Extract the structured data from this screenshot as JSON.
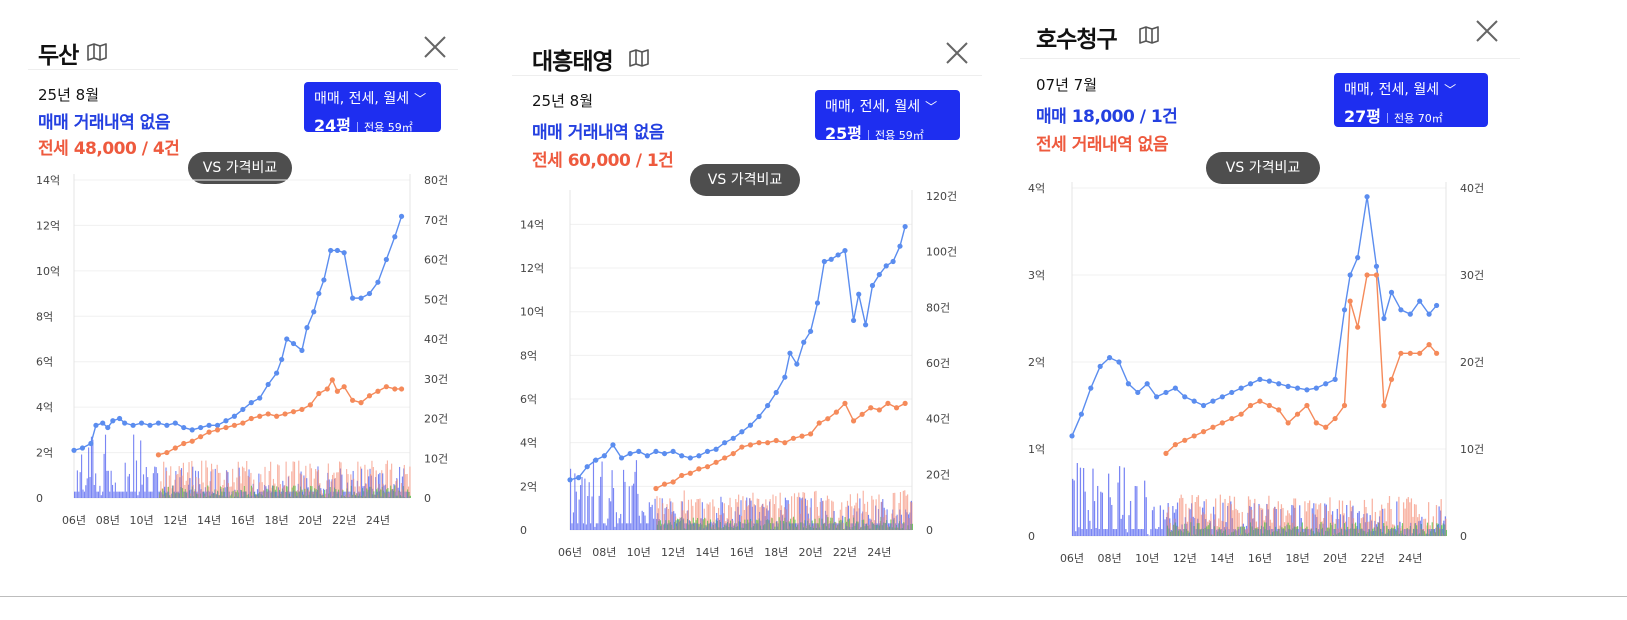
{
  "cards": [
    {
      "title": "두산",
      "icon": "map-icon",
      "period": "25년 8월",
      "sale": "매매 거래내역 없음",
      "jeonse": "전세 48,000 / 4건",
      "type_label": "매매, 전세, 월세",
      "pyeong": "24평",
      "area": "전용 59㎡",
      "vs_label": "VS 가격비교"
    },
    {
      "title": "대흥태영",
      "icon": "map-icon",
      "period": "25년 8월",
      "sale": "매매 거래내역 없음",
      "jeonse": "전세 60,000 / 1건",
      "type_label": "매매, 전세, 월세",
      "pyeong": "25평",
      "area": "전용 59㎡",
      "vs_label": "VS 가격비교"
    },
    {
      "title": "호수청구",
      "icon": "map-icon",
      "period": "07년 7월",
      "sale": "매매 18,000 / 1건",
      "jeonse": "전세 거래내역 없음",
      "type_label": "매매, 전세, 월세",
      "pyeong": "27평",
      "area": "전용 70㎡",
      "vs_label": "VS 가격비교"
    }
  ],
  "colors": {
    "sale": "#5b8def",
    "jeonse": "#f58a5a",
    "sale_bar": "#4d5ef0",
    "jeonse_bar": "#f5917a",
    "monthly_bar": "#55c04a",
    "button": "#1e2ef0",
    "vs_button": "#4e4e4e"
  },
  "chart_data": [
    {
      "type": "line",
      "x_ticks": [
        "06년",
        "08년",
        "10년",
        "12년",
        "14년",
        "16년",
        "18년",
        "20년",
        "22년",
        "24년"
      ],
      "y_left_ticks": [
        "0",
        "2억",
        "4억",
        "6억",
        "8억",
        "10억",
        "12억",
        "14억"
      ],
      "y_right_ticks": [
        "0",
        "10건",
        "20건",
        "30건",
        "40건",
        "50건",
        "60건",
        "70건",
        "80건"
      ],
      "ylim_left": [
        0,
        14
      ],
      "ylim_right": [
        0,
        80
      ],
      "x_range": [
        2006,
        2025.9
      ],
      "series": [
        {
          "kind": "sale",
          "points": [
            [
              2006.0,
              2.1
            ],
            [
              2006.5,
              2.2
            ],
            [
              2007.0,
              2.4
            ],
            [
              2007.3,
              3.2
            ],
            [
              2007.7,
              3.3
            ],
            [
              2008.0,
              3.1
            ],
            [
              2008.3,
              3.4
            ],
            [
              2008.7,
              3.5
            ],
            [
              2009.0,
              3.3
            ],
            [
              2009.5,
              3.2
            ],
            [
              2010.0,
              3.3
            ],
            [
              2010.5,
              3.2
            ],
            [
              2011.0,
              3.3
            ],
            [
              2011.5,
              3.2
            ],
            [
              2012.0,
              3.3
            ],
            [
              2012.5,
              3.1
            ],
            [
              2013.0,
              3.0
            ],
            [
              2013.5,
              3.1
            ],
            [
              2014.0,
              3.2
            ],
            [
              2014.5,
              3.2
            ],
            [
              2015.0,
              3.4
            ],
            [
              2015.5,
              3.6
            ],
            [
              2016.0,
              3.9
            ],
            [
              2016.5,
              4.2
            ],
            [
              2017.0,
              4.4
            ],
            [
              2017.5,
              5.0
            ],
            [
              2018.0,
              5.5
            ],
            [
              2018.3,
              6.1
            ],
            [
              2018.6,
              7.0
            ],
            [
              2019.0,
              6.8
            ],
            [
              2019.5,
              6.5
            ],
            [
              2019.8,
              7.5
            ],
            [
              2020.2,
              8.2
            ],
            [
              2020.5,
              9.0
            ],
            [
              2020.8,
              9.6
            ],
            [
              2021.2,
              10.9
            ],
            [
              2021.6,
              10.9
            ],
            [
              2022.0,
              10.8
            ],
            [
              2022.5,
              8.8
            ],
            [
              2023.0,
              8.8
            ],
            [
              2023.5,
              9.0
            ],
            [
              2024.0,
              9.5
            ],
            [
              2024.5,
              10.5
            ],
            [
              2025.0,
              11.5
            ],
            [
              2025.4,
              12.4
            ]
          ]
        },
        {
          "kind": "jeonse",
          "points": [
            [
              2011.0,
              1.9
            ],
            [
              2011.5,
              2.0
            ],
            [
              2012.0,
              2.2
            ],
            [
              2012.5,
              2.4
            ],
            [
              2013.0,
              2.5
            ],
            [
              2013.5,
              2.7
            ],
            [
              2014.0,
              2.9
            ],
            [
              2014.5,
              3.0
            ],
            [
              2015.0,
              3.1
            ],
            [
              2015.5,
              3.2
            ],
            [
              2016.0,
              3.3
            ],
            [
              2016.5,
              3.5
            ],
            [
              2017.0,
              3.6
            ],
            [
              2017.5,
              3.7
            ],
            [
              2018.0,
              3.6
            ],
            [
              2018.5,
              3.7
            ],
            [
              2019.0,
              3.8
            ],
            [
              2019.5,
              3.9
            ],
            [
              2020.0,
              4.1
            ],
            [
              2020.5,
              4.6
            ],
            [
              2021.0,
              4.8
            ],
            [
              2021.3,
              5.2
            ],
            [
              2021.6,
              4.7
            ],
            [
              2022.0,
              4.9
            ],
            [
              2022.5,
              4.3
            ],
            [
              2023.0,
              4.2
            ],
            [
              2023.5,
              4.5
            ],
            [
              2024.0,
              4.7
            ],
            [
              2024.5,
              4.9
            ],
            [
              2025.0,
              4.8
            ],
            [
              2025.4,
              4.8
            ]
          ]
        }
      ]
    },
    {
      "type": "line",
      "x_ticks": [
        "06년",
        "08년",
        "10년",
        "12년",
        "14년",
        "16년",
        "18년",
        "20년",
        "22년",
        "24년"
      ],
      "y_left_ticks": [
        "0",
        "2억",
        "4억",
        "6억",
        "8억",
        "10억",
        "12억",
        "14억"
      ],
      "y_right_ticks": [
        "0",
        "20건",
        "40건",
        "60건",
        "80건",
        "100건",
        "120건"
      ],
      "ylim_left": [
        0,
        15.3
      ],
      "ylim_right": [
        0,
        120
      ],
      "x_range": [
        2006,
        2025.9
      ],
      "series": [
        {
          "kind": "sale",
          "points": [
            [
              2006.0,
              2.3
            ],
            [
              2006.5,
              2.4
            ],
            [
              2007.0,
              2.9
            ],
            [
              2007.5,
              3.2
            ],
            [
              2008.0,
              3.4
            ],
            [
              2008.5,
              3.9
            ],
            [
              2009.0,
              3.3
            ],
            [
              2009.5,
              3.5
            ],
            [
              2010.0,
              3.6
            ],
            [
              2010.5,
              3.4
            ],
            [
              2011.0,
              3.6
            ],
            [
              2011.5,
              3.5
            ],
            [
              2012.0,
              3.6
            ],
            [
              2012.5,
              3.4
            ],
            [
              2013.0,
              3.3
            ],
            [
              2013.5,
              3.4
            ],
            [
              2014.0,
              3.6
            ],
            [
              2014.5,
              3.7
            ],
            [
              2015.0,
              4.0
            ],
            [
              2015.5,
              4.2
            ],
            [
              2016.0,
              4.5
            ],
            [
              2016.5,
              4.8
            ],
            [
              2017.0,
              5.2
            ],
            [
              2017.5,
              5.7
            ],
            [
              2018.0,
              6.3
            ],
            [
              2018.5,
              7.0
            ],
            [
              2018.8,
              8.1
            ],
            [
              2019.2,
              7.6
            ],
            [
              2019.6,
              8.6
            ],
            [
              2020.0,
              9.1
            ],
            [
              2020.4,
              10.4
            ],
            [
              2020.8,
              12.3
            ],
            [
              2021.2,
              12.4
            ],
            [
              2021.6,
              12.6
            ],
            [
              2022.0,
              12.8
            ],
            [
              2022.5,
              9.6
            ],
            [
              2022.8,
              10.8
            ],
            [
              2023.2,
              9.4
            ],
            [
              2023.6,
              11.2
            ],
            [
              2024.0,
              11.7
            ],
            [
              2024.4,
              12.1
            ],
            [
              2024.8,
              12.3
            ],
            [
              2025.2,
              13.0
            ],
            [
              2025.5,
              13.9
            ]
          ]
        },
        {
          "kind": "jeonse",
          "points": [
            [
              2011.0,
              1.9
            ],
            [
              2011.5,
              2.1
            ],
            [
              2012.0,
              2.2
            ],
            [
              2012.5,
              2.5
            ],
            [
              2013.0,
              2.6
            ],
            [
              2013.5,
              2.8
            ],
            [
              2014.0,
              2.9
            ],
            [
              2014.5,
              3.1
            ],
            [
              2015.0,
              3.3
            ],
            [
              2015.5,
              3.5
            ],
            [
              2016.0,
              3.8
            ],
            [
              2016.5,
              3.9
            ],
            [
              2017.0,
              4.0
            ],
            [
              2017.5,
              4.0
            ],
            [
              2018.0,
              4.1
            ],
            [
              2018.5,
              4.0
            ],
            [
              2019.0,
              4.2
            ],
            [
              2019.5,
              4.3
            ],
            [
              2020.0,
              4.4
            ],
            [
              2020.5,
              4.9
            ],
            [
              2021.0,
              5.1
            ],
            [
              2021.5,
              5.4
            ],
            [
              2022.0,
              5.8
            ],
            [
              2022.5,
              5.0
            ],
            [
              2023.0,
              5.3
            ],
            [
              2023.5,
              5.6
            ],
            [
              2024.0,
              5.5
            ],
            [
              2024.5,
              5.8
            ],
            [
              2025.0,
              5.6
            ],
            [
              2025.5,
              5.8
            ]
          ]
        }
      ]
    },
    {
      "type": "line",
      "x_ticks": [
        "06년",
        "08년",
        "10년",
        "12년",
        "14년",
        "16년",
        "18년",
        "20년",
        "22년",
        "24년"
      ],
      "y_left_ticks": [
        "0",
        "1억",
        "2억",
        "3억",
        "4억"
      ],
      "y_right_ticks": [
        "0",
        "10건",
        "20건",
        "30건",
        "40건"
      ],
      "ylim_left": [
        0,
        4
      ],
      "ylim_right": [
        0,
        40
      ],
      "x_range": [
        2006,
        2025.9
      ],
      "series": [
        {
          "kind": "sale",
          "points": [
            [
              2006.0,
              1.15
            ],
            [
              2006.5,
              1.4
            ],
            [
              2007.0,
              1.7
            ],
            [
              2007.5,
              1.95
            ],
            [
              2008.0,
              2.05
            ],
            [
              2008.5,
              2.0
            ],
            [
              2009.0,
              1.75
            ],
            [
              2009.5,
              1.65
            ],
            [
              2010.0,
              1.75
            ],
            [
              2010.5,
              1.6
            ],
            [
              2011.0,
              1.65
            ],
            [
              2011.5,
              1.7
            ],
            [
              2012.0,
              1.6
            ],
            [
              2012.5,
              1.55
            ],
            [
              2013.0,
              1.5
            ],
            [
              2013.5,
              1.55
            ],
            [
              2014.0,
              1.6
            ],
            [
              2014.5,
              1.65
            ],
            [
              2015.0,
              1.7
            ],
            [
              2015.5,
              1.75
            ],
            [
              2016.0,
              1.8
            ],
            [
              2016.5,
              1.78
            ],
            [
              2017.0,
              1.75
            ],
            [
              2017.5,
              1.72
            ],
            [
              2018.0,
              1.7
            ],
            [
              2018.5,
              1.68
            ],
            [
              2019.0,
              1.7
            ],
            [
              2019.5,
              1.75
            ],
            [
              2020.0,
              1.8
            ],
            [
              2020.5,
              2.6
            ],
            [
              2020.8,
              3.0
            ],
            [
              2021.2,
              3.2
            ],
            [
              2021.7,
              3.9
            ],
            [
              2022.2,
              3.1
            ],
            [
              2022.6,
              2.5
            ],
            [
              2023.0,
              2.8
            ],
            [
              2023.5,
              2.6
            ],
            [
              2024.0,
              2.55
            ],
            [
              2024.5,
              2.7
            ],
            [
              2025.0,
              2.55
            ],
            [
              2025.4,
              2.65
            ]
          ]
        },
        {
          "kind": "jeonse",
          "points": [
            [
              2011.0,
              0.95
            ],
            [
              2011.5,
              1.05
            ],
            [
              2012.0,
              1.1
            ],
            [
              2012.5,
              1.15
            ],
            [
              2013.0,
              1.2
            ],
            [
              2013.5,
              1.25
            ],
            [
              2014.0,
              1.3
            ],
            [
              2014.5,
              1.35
            ],
            [
              2015.0,
              1.4
            ],
            [
              2015.5,
              1.5
            ],
            [
              2016.0,
              1.55
            ],
            [
              2016.5,
              1.5
            ],
            [
              2017.0,
              1.45
            ],
            [
              2017.5,
              1.3
            ],
            [
              2018.0,
              1.4
            ],
            [
              2018.5,
              1.5
            ],
            [
              2019.0,
              1.3
            ],
            [
              2019.5,
              1.25
            ],
            [
              2020.0,
              1.35
            ],
            [
              2020.5,
              1.5
            ],
            [
              2020.8,
              2.7
            ],
            [
              2021.2,
              2.4
            ],
            [
              2021.7,
              3.0
            ],
            [
              2022.2,
              3.0
            ],
            [
              2022.6,
              1.5
            ],
            [
              2023.0,
              1.8
            ],
            [
              2023.5,
              2.1
            ],
            [
              2024.0,
              2.1
            ],
            [
              2024.5,
              2.1
            ],
            [
              2025.0,
              2.2
            ],
            [
              2025.4,
              2.1
            ]
          ]
        }
      ]
    }
  ]
}
